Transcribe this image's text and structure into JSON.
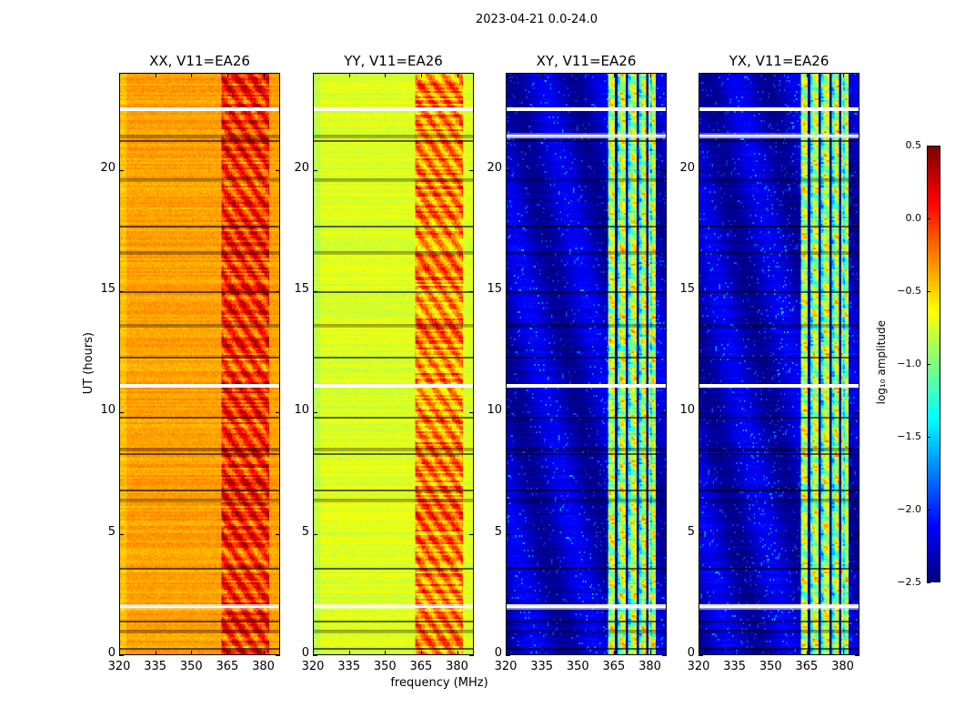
{
  "figure": {
    "suptitle": "2023-04-21 0.0-24.0",
    "xlabel": "frequency (MHz)",
    "ylabel": "UT (hours)"
  },
  "chart_data": {
    "type": "heatmap",
    "colormap": "jet",
    "xlim": [
      320,
      387
    ],
    "ylim": [
      0,
      24
    ],
    "xticks": [
      320,
      335,
      350,
      365,
      380
    ],
    "yticks": [
      0,
      5,
      10,
      15,
      20
    ],
    "flagged_hours_white": [
      2.0,
      11.1,
      22.5
    ],
    "dark_line_hours": [
      0.3,
      1.0,
      1.4,
      3.6,
      6.4,
      6.8,
      8.3,
      8.5,
      9.8,
      12.3,
      13.6,
      15.0,
      16.6,
      17.7,
      19.6,
      21.2,
      21.4
    ],
    "rfi_band_mhz": [
      362.3,
      382.6
    ],
    "panels": [
      {
        "title": "XX, V11=EA26",
        "base_log_amp": -0.35,
        "band_log_amp": 0.0
      },
      {
        "title": "YY, V11=EA26",
        "base_log_amp": -0.72,
        "band_log_amp": -0.25
      },
      {
        "title": "XY, V11=EA26",
        "base_log_amp": -2.3,
        "band_log_amp": -0.8
      },
      {
        "title": "YX, V11=EA26",
        "base_log_amp": -2.3,
        "band_log_amp": -0.8
      }
    ],
    "colorbar": {
      "label": "log₁₀ amplitude",
      "range": [
        -2.5,
        0.5
      ],
      "ticks": [
        0.5,
        0.0,
        -0.5,
        -1.0,
        -1.5,
        -2.0,
        -2.5
      ],
      "tick_labels": [
        "0.5",
        "0.0",
        "−0.5",
        "−1.0",
        "−1.5",
        "−2.0",
        "−2.5"
      ]
    }
  }
}
